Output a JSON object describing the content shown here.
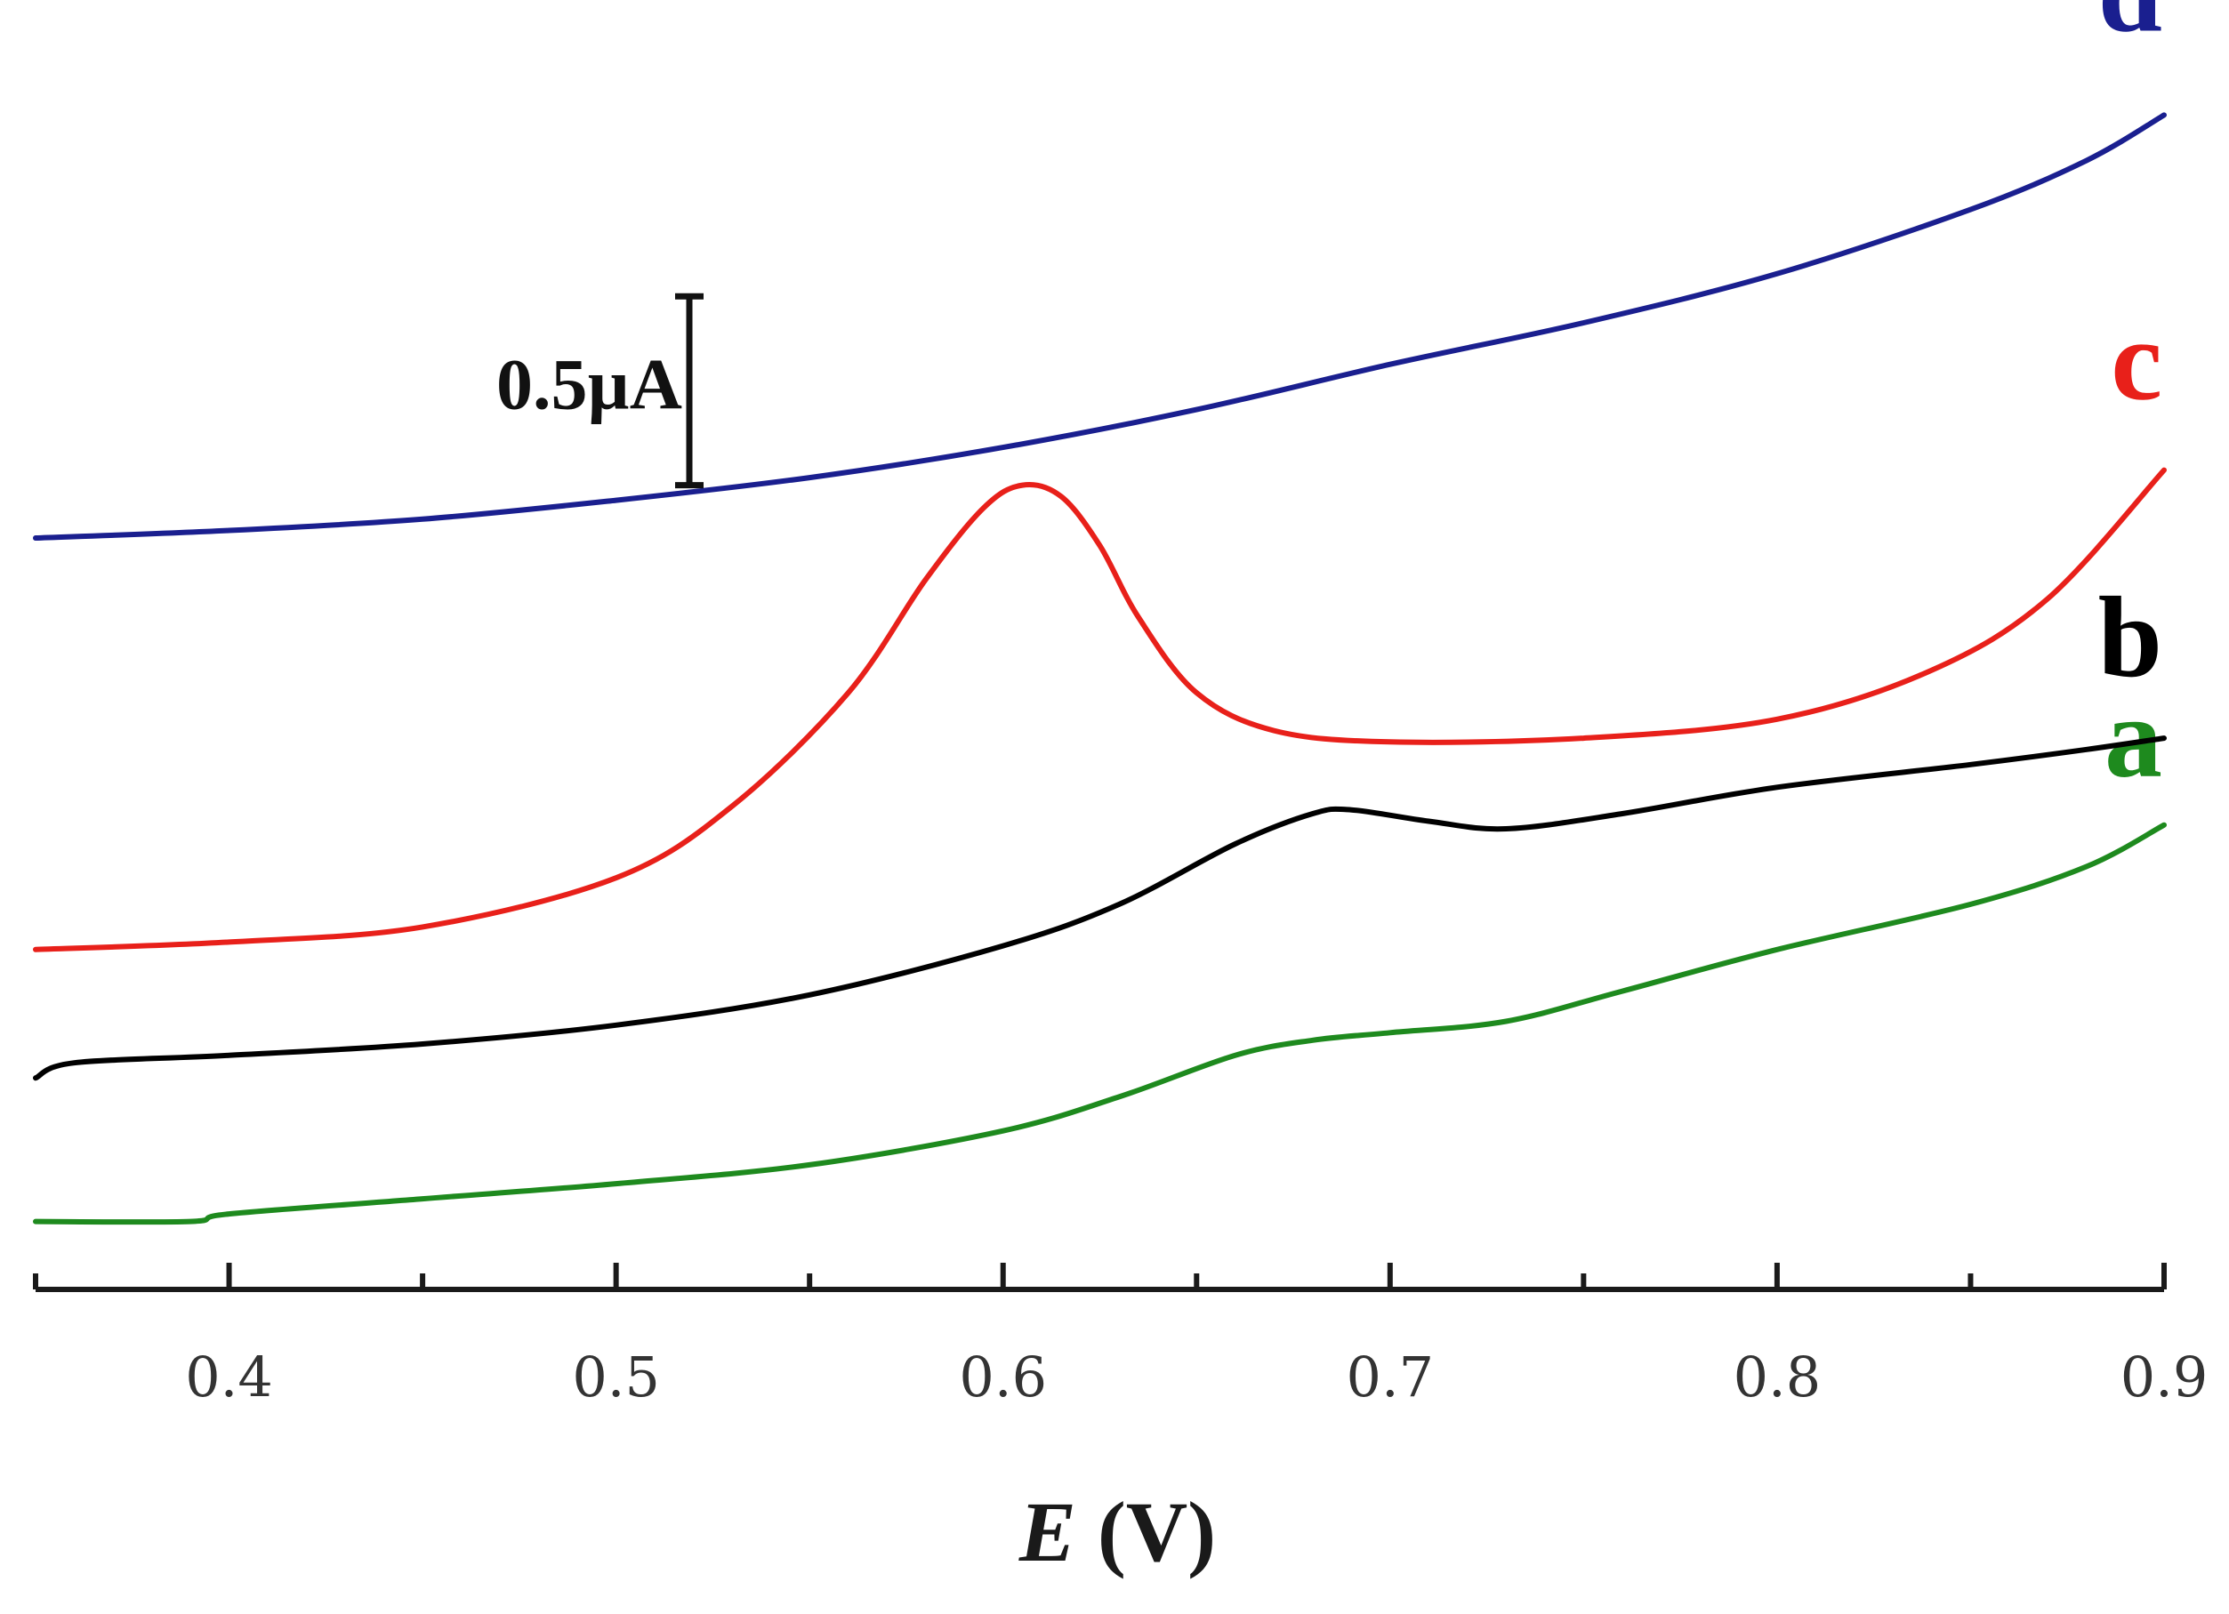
{
  "chart_data": {
    "type": "line",
    "title": "",
    "xlabel_symbol": "E",
    "xlabel_unit": " (V)",
    "ylabel": "",
    "xlim": [
      0.35,
      0.9
    ],
    "xticks": [
      "0.4",
      "0.5",
      "0.6",
      "0.7",
      "0.8",
      "0.9"
    ],
    "xtick_values": [
      0.4,
      0.5,
      0.6,
      0.7,
      0.8,
      0.9
    ],
    "minor_ticks": [
      0.35,
      0.45,
      0.55,
      0.65,
      0.75,
      0.85
    ],
    "ylim": [
      -0.18,
      3.07
    ],
    "y_units": "µA",
    "scale_bar": {
      "label": "0.5µA",
      "value": 0.5,
      "y_from": 1.95
    },
    "series": [
      {
        "name": "a",
        "color": "#1e8a1e",
        "points": [
          [
            0.35,
            0.0
          ],
          [
            0.39,
            0.0
          ],
          [
            0.4,
            0.02
          ],
          [
            0.45,
            0.06
          ],
          [
            0.5,
            0.1
          ],
          [
            0.55,
            0.15
          ],
          [
            0.6,
            0.24
          ],
          [
            0.63,
            0.33
          ],
          [
            0.66,
            0.44
          ],
          [
            0.68,
            0.48
          ],
          [
            0.7,
            0.5
          ],
          [
            0.73,
            0.53
          ],
          [
            0.76,
            0.61
          ],
          [
            0.8,
            0.72
          ],
          [
            0.85,
            0.84
          ],
          [
            0.88,
            0.94
          ],
          [
            0.9,
            1.05
          ]
        ]
      },
      {
        "name": "b",
        "color": "#000000",
        "points": [
          [
            0.35,
            0.38
          ],
          [
            0.36,
            0.42
          ],
          [
            0.4,
            0.44
          ],
          [
            0.45,
            0.47
          ],
          [
            0.5,
            0.52
          ],
          [
            0.55,
            0.6
          ],
          [
            0.6,
            0.73
          ],
          [
            0.63,
            0.84
          ],
          [
            0.66,
            1.0
          ],
          [
            0.68,
            1.08
          ],
          [
            0.69,
            1.09
          ],
          [
            0.71,
            1.06
          ],
          [
            0.73,
            1.04
          ],
          [
            0.76,
            1.08
          ],
          [
            0.8,
            1.15
          ],
          [
            0.85,
            1.21
          ],
          [
            0.88,
            1.25
          ],
          [
            0.9,
            1.28
          ]
        ]
      },
      {
        "name": "c",
        "color": "#e8201a",
        "points": [
          [
            0.35,
            0.72
          ],
          [
            0.4,
            0.74
          ],
          [
            0.45,
            0.78
          ],
          [
            0.5,
            0.91
          ],
          [
            0.53,
            1.1
          ],
          [
            0.56,
            1.4
          ],
          [
            0.58,
            1.7
          ],
          [
            0.595,
            1.89
          ],
          [
            0.605,
            1.95
          ],
          [
            0.615,
            1.92
          ],
          [
            0.625,
            1.79
          ],
          [
            0.635,
            1.6
          ],
          [
            0.65,
            1.4
          ],
          [
            0.67,
            1.3
          ],
          [
            0.7,
            1.27
          ],
          [
            0.75,
            1.28
          ],
          [
            0.8,
            1.33
          ],
          [
            0.84,
            1.46
          ],
          [
            0.87,
            1.65
          ],
          [
            0.9,
            1.99
          ]
        ]
      },
      {
        "name": "d",
        "color": "#1a1f8f",
        "points": [
          [
            0.35,
            1.81
          ],
          [
            0.4,
            1.83
          ],
          [
            0.45,
            1.86
          ],
          [
            0.5,
            1.91
          ],
          [
            0.55,
            1.97
          ],
          [
            0.6,
            2.05
          ],
          [
            0.65,
            2.15
          ],
          [
            0.7,
            2.27
          ],
          [
            0.75,
            2.38
          ],
          [
            0.8,
            2.51
          ],
          [
            0.85,
            2.68
          ],
          [
            0.88,
            2.81
          ],
          [
            0.9,
            2.93
          ]
        ]
      }
    ]
  }
}
